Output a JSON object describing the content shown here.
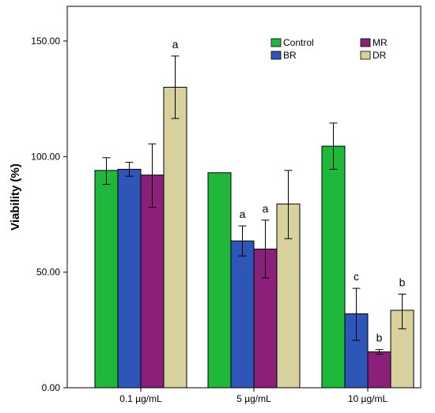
{
  "chart_data": {
    "type": "bar",
    "ylabel": "Viability (%)",
    "ylim": [
      0,
      165
    ],
    "yticks": [
      "0.00",
      "50.00",
      "100.00",
      "150.00"
    ],
    "ytick_values": [
      0,
      50,
      100,
      150
    ],
    "categories": [
      "0.1 µg/mL",
      "5 µg/mL",
      "10 µg/mL"
    ],
    "series": [
      {
        "name": "Control",
        "color": "#1fb83b",
        "values": [
          94,
          93,
          104.5
        ],
        "err_low": [
          88,
          93,
          94.5
        ],
        "err_high": [
          99.5,
          93,
          114.5
        ],
        "sig": [
          "",
          "",
          ""
        ]
      },
      {
        "name": "BR",
        "color": "#2e56b8",
        "values": [
          94.5,
          63.5,
          32
        ],
        "err_low": [
          91.5,
          57,
          20.5
        ],
        "err_high": [
          97.5,
          70,
          43
        ],
        "sig": [
          "",
          "a",
          "c"
        ]
      },
      {
        "name": "MR",
        "color": "#8b2079",
        "values": [
          92,
          60,
          15.5
        ],
        "err_low": [
          78,
          47.5,
          14.5
        ],
        "err_high": [
          105.5,
          72.5,
          16.5
        ],
        "sig": [
          "",
          "a",
          "b"
        ]
      },
      {
        "name": "DR",
        "color": "#d9d19d",
        "values": [
          130,
          79.5,
          33.5
        ],
        "err_low": [
          116.5,
          64.5,
          25.5
        ],
        "err_high": [
          143.5,
          94,
          40.5
        ],
        "sig": [
          "a",
          "",
          "b"
        ]
      }
    ],
    "legend": {
      "placement": "top-right",
      "columns": 2,
      "order": [
        "Control",
        "MR",
        "BR",
        "DR"
      ]
    }
  }
}
